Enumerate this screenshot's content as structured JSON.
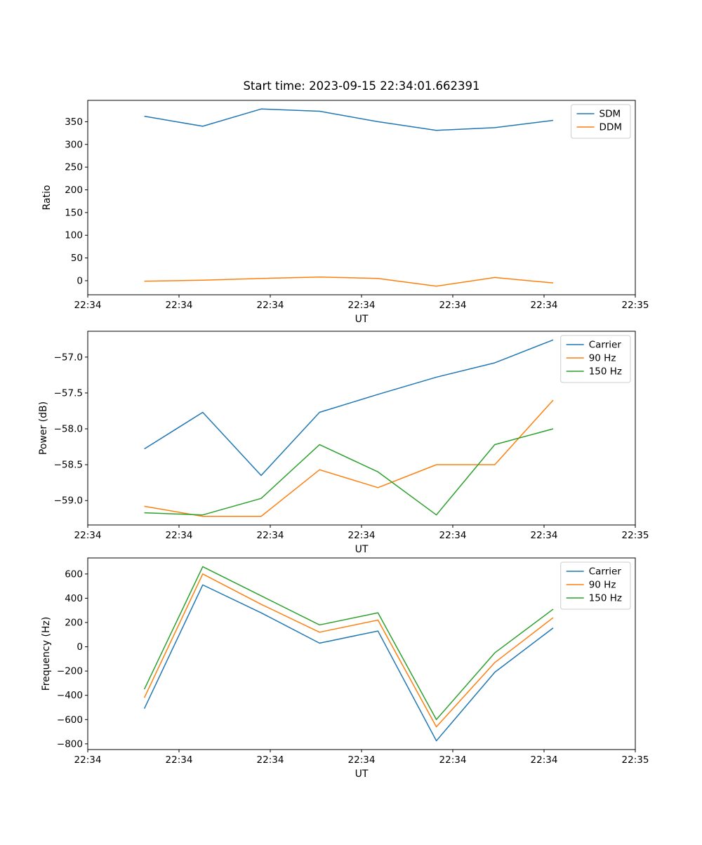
{
  "figure": {
    "title": "Start time: 2023-09-15 22:34:01.662391"
  },
  "chart_data": [
    {
      "type": "line",
      "name": "ratio-plot",
      "title": "Start time: 2023-09-15 22:34:01.662391",
      "xlabel": "UT",
      "ylabel": "Ratio",
      "x": [
        6.2,
        12.6,
        19.0,
        25.4,
        31.8,
        38.2,
        44.6,
        51.0
      ],
      "xlim": [
        0,
        60
      ],
      "xticks": [
        0,
        10,
        20,
        30,
        40,
        50,
        60
      ],
      "xtick_labels": [
        "22:34",
        "22:34",
        "22:34",
        "22:34",
        "22:34",
        "22:34",
        "22:35"
      ],
      "ylim": [
        -31,
        397
      ],
      "yticks": [
        0,
        50,
        100,
        150,
        200,
        250,
        300,
        350
      ],
      "ytick_labels": [
        "0",
        "50",
        "100",
        "150",
        "200",
        "250",
        "300",
        "350"
      ],
      "grid": false,
      "legend_position": "upper right",
      "series": [
        {
          "name": "SDM",
          "color": "#1f77b4",
          "values": [
            362,
            340,
            378,
            373,
            350,
            331,
            337,
            353
          ]
        },
        {
          "name": "DDM",
          "color": "#ff7f0e",
          "values": [
            -1,
            1,
            5,
            8,
            5,
            -12,
            7,
            -5
          ]
        }
      ]
    },
    {
      "type": "line",
      "name": "power-plot",
      "title": "",
      "xlabel": "UT",
      "ylabel": "Power (dB)",
      "x": [
        6.2,
        12.6,
        19.0,
        25.4,
        31.8,
        38.2,
        44.6,
        51.0
      ],
      "xlim": [
        0,
        60
      ],
      "xticks": [
        0,
        10,
        20,
        30,
        40,
        50,
        60
      ],
      "xtick_labels": [
        "22:34",
        "22:34",
        "22:34",
        "22:34",
        "22:34",
        "22:34",
        "22:35"
      ],
      "ylim": [
        -59.34,
        -56.64
      ],
      "yticks": [
        -59.0,
        -58.5,
        -58.0,
        -57.5,
        -57.0
      ],
      "ytick_labels": [
        "−59.0",
        "−58.5",
        "−58.0",
        "−57.5",
        "−57.0"
      ],
      "grid": false,
      "legend_position": "upper right",
      "series": [
        {
          "name": "Carrier",
          "color": "#1f77b4",
          "values": [
            -58.28,
            -57.77,
            -58.65,
            -57.77,
            -57.52,
            -57.28,
            -57.08,
            -56.76
          ]
        },
        {
          "name": "90 Hz",
          "color": "#ff7f0e",
          "values": [
            -59.08,
            -59.22,
            -59.22,
            -58.57,
            -58.82,
            -58.5,
            -58.5,
            -57.6
          ]
        },
        {
          "name": "150 Hz",
          "color": "#2ca02c",
          "values": [
            -59.17,
            -59.2,
            -58.97,
            -58.22,
            -58.6,
            -59.2,
            -58.22,
            -58.0
          ]
        }
      ]
    },
    {
      "type": "line",
      "name": "frequency-plot",
      "title": "",
      "xlabel": "UT",
      "ylabel": "Frequency (Hz)",
      "x": [
        6.2,
        12.6,
        19.0,
        25.4,
        31.8,
        38.2,
        44.6,
        51.0
      ],
      "xlim": [
        0,
        60
      ],
      "xticks": [
        0,
        10,
        20,
        30,
        40,
        50,
        60
      ],
      "xtick_labels": [
        "22:34",
        "22:34",
        "22:34",
        "22:34",
        "22:34",
        "22:34",
        "22:35"
      ],
      "ylim": [
        -847,
        732
      ],
      "yticks": [
        -800,
        -600,
        -400,
        -200,
        0,
        200,
        400,
        600
      ],
      "ytick_labels": [
        "−800",
        "−600",
        "−400",
        "−200",
        "0",
        "200",
        "400",
        "600"
      ],
      "grid": false,
      "legend_position": "upper right",
      "series": [
        {
          "name": "Carrier",
          "color": "#1f77b4",
          "values": [
            -510,
            510,
            280,
            30,
            130,
            -775,
            -210,
            155
          ]
        },
        {
          "name": "90 Hz",
          "color": "#ff7f0e",
          "values": [
            -420,
            600,
            350,
            120,
            220,
            -660,
            -130,
            240
          ]
        },
        {
          "name": "150 Hz",
          "color": "#2ca02c",
          "values": [
            -350,
            660,
            420,
            180,
            280,
            -600,
            -50,
            310
          ]
        }
      ]
    }
  ]
}
